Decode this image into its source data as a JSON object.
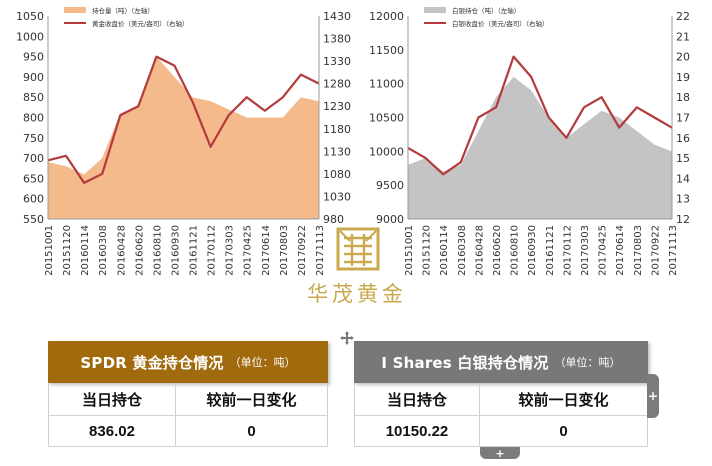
{
  "colors": {
    "gold_area": "#F4BA8C",
    "price_line": "#B33B3B",
    "silver_area": "#C4C4C4",
    "gold_header": "#A16A0C",
    "silver_header": "#787878",
    "logo": "#C9A94E"
  },
  "chart_data": [
    {
      "type": "area",
      "legend": [
        "持仓量（吨）（左轴）",
        "黄金收盘价（美元/盎司）（右轴）"
      ],
      "legend_position": "top-left",
      "x_ticks": [
        "20151001",
        "20151120",
        "20160114",
        "20160308",
        "20160428",
        "20160620",
        "20160810",
        "20160930",
        "20161121",
        "20170112",
        "20170303",
        "20170425",
        "20170614",
        "20170803",
        "20170922",
        "20171113"
      ],
      "yleft_ticks": [
        "1050",
        "1000",
        "950",
        "900",
        "850",
        "800",
        "750",
        "700",
        "650",
        "600",
        "550"
      ],
      "yright_ticks": [
        "1430",
        "1380",
        "1330",
        "1280",
        "1230",
        "1180",
        "1130",
        "1080",
        "1030",
        "980"
      ],
      "ylim_left": [
        550,
        1050
      ],
      "ylim_right": [
        980,
        1430
      ],
      "x": [
        0,
        1,
        2,
        3,
        4,
        5,
        6,
        7,
        8,
        9,
        10,
        11,
        12,
        13,
        14,
        15
      ],
      "series": [
        {
          "name": "持仓量（吨）（左轴）",
          "axis": "left",
          "values": [
            690,
            680,
            660,
            700,
            810,
            830,
            950,
            900,
            850,
            840,
            820,
            800,
            800,
            800,
            850,
            840
          ]
        },
        {
          "name": "黄金收盘价（美元/盎司）（右轴）",
          "axis": "right",
          "values": [
            1110,
            1120,
            1060,
            1080,
            1210,
            1230,
            1340,
            1320,
            1240,
            1140,
            1210,
            1250,
            1220,
            1250,
            1300,
            1280
          ]
        }
      ]
    },
    {
      "type": "area",
      "legend": [
        "白银持仓（吨）（左轴）",
        "白银收盘价（美元/盎司）（右轴）"
      ],
      "legend_position": "top-left",
      "x_ticks": [
        "20151001",
        "20151120",
        "20160114",
        "20160308",
        "20160428",
        "20160620",
        "20160810",
        "20160930",
        "20161121",
        "20170112",
        "20170303",
        "20170425",
        "20170614",
        "20170803",
        "20170922",
        "20171113"
      ],
      "yleft_ticks": [
        "12000",
        "11500",
        "11000",
        "10500",
        "10000",
        "9500",
        "9000"
      ],
      "yright_ticks": [
        "22",
        "21",
        "20",
        "19",
        "18",
        "17",
        "16",
        "15",
        "14",
        "13",
        "12"
      ],
      "ylim_left": [
        9000,
        12000
      ],
      "ylim_right": [
        12,
        22
      ],
      "x": [
        0,
        1,
        2,
        3,
        4,
        5,
        6,
        7,
        8,
        9,
        10,
        11,
        12,
        13,
        14,
        15
      ],
      "series": [
        {
          "name": "白银持仓（吨）（左轴）",
          "axis": "left",
          "values": [
            9800,
            9900,
            9700,
            9800,
            10300,
            10800,
            11100,
            10900,
            10500,
            10200,
            10400,
            10600,
            10500,
            10300,
            10100,
            10000
          ]
        },
        {
          "name": "白银收盘价（美元/盎司）（右轴）",
          "axis": "right",
          "values": [
            15.5,
            15.0,
            14.2,
            14.8,
            17.0,
            17.5,
            20.0,
            19.0,
            17.0,
            16.0,
            17.5,
            18.0,
            16.5,
            17.5,
            17.0,
            16.5
          ]
        }
      ]
    }
  ],
  "logo": {
    "text": "华茂黄金"
  },
  "gold_card": {
    "title": "SPDR 黄金持仓情况",
    "unit": "（单位：吨）",
    "col1": "当日持仓",
    "col2": "较前一日变化",
    "val1": "836.02",
    "val2": "0"
  },
  "silver_card": {
    "title": "I Shares 白银持仓情况",
    "unit": "（单位：吨）",
    "col1": "当日持仓",
    "col2": "较前一日变化",
    "val1": "10150.22",
    "val2": "0"
  }
}
